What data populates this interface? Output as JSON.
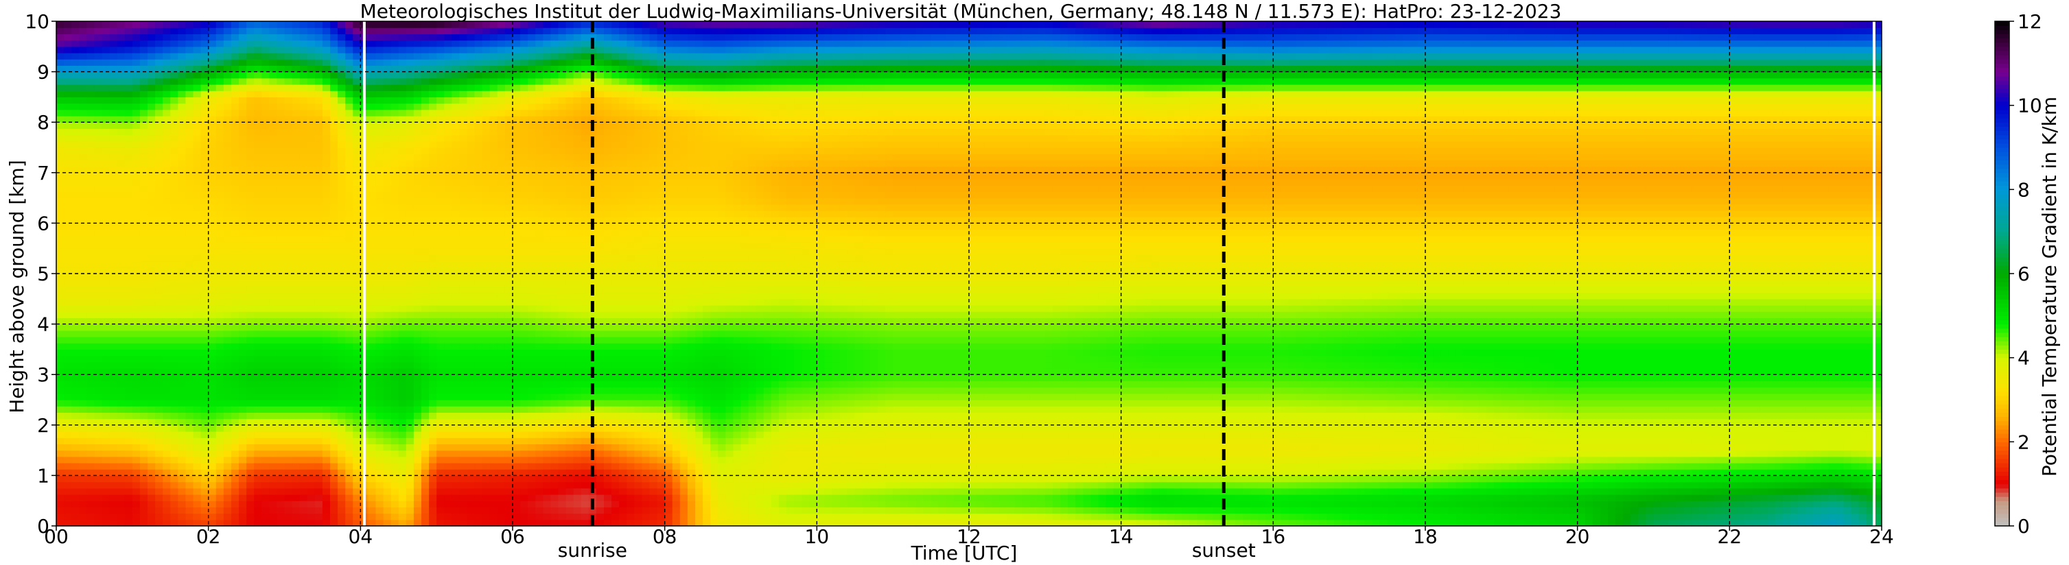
{
  "chart_data": {
    "type": "heatmap",
    "title": "Meteorologisches Institut der Ludwig-Maximilians-Universität (München, Germany; 48.148 N / 11.573 E):    HatPro: 23-12-2023",
    "xlabel": "Time [UTC]",
    "ylabel": "Height above ground [km]",
    "colorbar_label": "Potential Temperature Gradient in K/km",
    "xlim": [
      0,
      24
    ],
    "ylim": [
      0,
      10
    ],
    "clim": [
      0,
      12
    ],
    "x_ticks": [
      0,
      2,
      4,
      6,
      8,
      10,
      12,
      14,
      16,
      18,
      20,
      22,
      24
    ],
    "x_tick_labels": [
      "00",
      "02",
      "04",
      "06",
      "08",
      "10",
      "12",
      "14",
      "16",
      "18",
      "20",
      "22",
      "24"
    ],
    "y_ticks": [
      0,
      1,
      2,
      3,
      4,
      5,
      6,
      7,
      8,
      9,
      10
    ],
    "y_tick_labels": [
      "0",
      "1",
      "2",
      "3",
      "4",
      "5",
      "6",
      "7",
      "8",
      "9",
      "10"
    ],
    "colorbar_ticks": [
      0,
      2,
      4,
      6,
      8,
      10,
      12
    ],
    "colorbar_tick_labels": [
      "0",
      "2",
      "4",
      "6",
      "8",
      "10",
      "12"
    ],
    "grid": true,
    "annotations": [
      {
        "text": "sunrise",
        "x": 7.05
      },
      {
        "text": "sunset",
        "x": 15.35
      }
    ],
    "data_gaps": [
      4.05,
      23.9
    ],
    "colormap": [
      {
        "v": 0.0,
        "c": "#c0c0c0"
      },
      {
        "v": 0.6,
        "c": "#c89a82"
      },
      {
        "v": 1.0,
        "c": "#e60000"
      },
      {
        "v": 2.0,
        "c": "#ff6a00"
      },
      {
        "v": 2.6,
        "c": "#ffb400"
      },
      {
        "v": 3.2,
        "c": "#ffe000"
      },
      {
        "v": 4.0,
        "c": "#d6f500"
      },
      {
        "v": 4.8,
        "c": "#00ee00"
      },
      {
        "v": 6.0,
        "c": "#00aa00"
      },
      {
        "v": 7.0,
        "c": "#00a890"
      },
      {
        "v": 8.0,
        "c": "#0098d8"
      },
      {
        "v": 9.0,
        "c": "#0050e0"
      },
      {
        "v": 10.0,
        "c": "#0000cc"
      },
      {
        "v": 10.8,
        "c": "#780090"
      },
      {
        "v": 11.5,
        "c": "#3a003a"
      },
      {
        "v": 12.0,
        "c": "#000000"
      }
    ],
    "profiles": [
      {
        "t": 0.0,
        "v": [
          1.2,
          1.1,
          1.5,
          2.6,
          3.6,
          4.8,
          5.0,
          4.8,
          4.2,
          3.6,
          3.4,
          3.3,
          3.2,
          3.2,
          3.3,
          3.5,
          4.2,
          5.5,
          7.8,
          10.5,
          11.6
        ]
      },
      {
        "t": 1.0,
        "v": [
          1.1,
          1.0,
          1.6,
          2.8,
          3.8,
          5.0,
          5.1,
          4.8,
          4.2,
          3.6,
          3.4,
          3.3,
          3.2,
          3.2,
          3.3,
          3.6,
          4.3,
          5.6,
          7.8,
          9.8,
          11.0
        ]
      },
      {
        "t": 2.0,
        "v": [
          1.6,
          2.2,
          3.0,
          3.8,
          4.4,
          5.0,
          5.0,
          4.8,
          4.2,
          3.7,
          3.5,
          3.3,
          3.2,
          3.1,
          3.0,
          3.0,
          3.1,
          3.6,
          6.0,
          8.5,
          10.2
        ]
      },
      {
        "t": 2.6,
        "v": [
          1.0,
          1.0,
          1.5,
          2.6,
          3.8,
          5.1,
          5.3,
          5.0,
          4.3,
          3.8,
          3.5,
          3.3,
          3.1,
          3.0,
          2.9,
          2.8,
          2.7,
          2.8,
          4.8,
          7.0,
          8.8
        ]
      },
      {
        "t": 3.5,
        "v": [
          1.0,
          0.9,
          1.4,
          2.6,
          3.8,
          5.1,
          5.3,
          5.0,
          4.3,
          3.8,
          3.5,
          3.3,
          3.1,
          3.0,
          2.9,
          2.8,
          2.8,
          3.2,
          5.6,
          8.0,
          9.6
        ]
      },
      {
        "t": 4.0,
        "v": [
          1.8,
          2.2,
          3.0,
          3.8,
          4.4,
          5.0,
          5.1,
          4.8,
          4.2,
          3.8,
          3.5,
          3.3,
          3.2,
          3.2,
          3.3,
          3.5,
          4.0,
          5.4,
          7.6,
          9.8,
          11.8
        ]
      },
      {
        "t": 4.6,
        "v": [
          2.5,
          3.2,
          3.6,
          4.2,
          4.8,
          5.4,
          5.4,
          5.0,
          4.4,
          3.8,
          3.5,
          3.3,
          3.2,
          3.1,
          3.1,
          3.3,
          3.8,
          5.2,
          7.2,
          9.4,
          11.9
        ]
      },
      {
        "t": 5.0,
        "v": [
          1.2,
          1.0,
          1.4,
          2.4,
          3.6,
          4.8,
          5.0,
          4.8,
          4.4,
          3.9,
          3.6,
          3.3,
          3.2,
          3.1,
          3.0,
          3.1,
          3.4,
          4.6,
          6.8,
          9.2,
          11.9
        ]
      },
      {
        "t": 6.0,
        "v": [
          1.0,
          1.0,
          1.3,
          2.4,
          3.6,
          4.8,
          5.0,
          4.8,
          4.4,
          3.9,
          3.6,
          3.3,
          3.2,
          3.0,
          2.9,
          2.8,
          2.8,
          3.6,
          5.8,
          8.4,
          11.0
        ]
      },
      {
        "t": 7.0,
        "v": [
          1.0,
          0.8,
          1.1,
          2.0,
          3.2,
          4.6,
          5.0,
          4.8,
          4.2,
          3.8,
          3.6,
          3.3,
          3.1,
          2.9,
          2.8,
          2.6,
          2.5,
          2.8,
          4.5,
          7.0,
          9.6
        ]
      },
      {
        "t": 8.0,
        "v": [
          1.4,
          1.2,
          1.8,
          2.8,
          3.6,
          4.6,
          5.0,
          4.8,
          4.2,
          3.8,
          3.6,
          3.4,
          3.2,
          3.0,
          2.9,
          2.8,
          2.8,
          3.4,
          6.0,
          8.6,
          10.6
        ]
      },
      {
        "t": 8.7,
        "v": [
          3.4,
          3.6,
          3.8,
          4.2,
          4.6,
          5.0,
          5.2,
          5.0,
          4.4,
          3.9,
          3.6,
          3.4,
          3.2,
          3.0,
          2.9,
          2.9,
          3.0,
          3.6,
          6.2,
          8.8,
          10.8
        ]
      },
      {
        "t": 9.6,
        "v": [
          3.8,
          4.2,
          3.6,
          3.6,
          4.0,
          4.4,
          4.8,
          4.8,
          4.4,
          4.0,
          3.6,
          3.4,
          3.1,
          2.7,
          2.6,
          2.9,
          3.2,
          3.6,
          5.8,
          8.4,
          10.8
        ]
      },
      {
        "t": 11.0,
        "v": [
          3.6,
          4.4,
          3.8,
          3.5,
          3.8,
          4.2,
          4.6,
          4.6,
          4.3,
          3.9,
          3.5,
          3.3,
          3.0,
          2.6,
          2.5,
          2.8,
          3.1,
          3.6,
          5.6,
          8.2,
          10.4
        ]
      },
      {
        "t": 13.0,
        "v": [
          3.7,
          4.6,
          3.8,
          3.5,
          3.8,
          4.2,
          4.6,
          4.6,
          4.3,
          3.9,
          3.5,
          3.3,
          3.0,
          2.6,
          2.5,
          2.8,
          3.1,
          3.6,
          5.6,
          8.0,
          10.2
        ]
      },
      {
        "t": 14.5,
        "v": [
          3.9,
          5.2,
          4.0,
          3.5,
          3.8,
          4.2,
          4.6,
          4.7,
          4.4,
          4.0,
          3.6,
          3.3,
          3.0,
          2.6,
          2.5,
          2.8,
          3.2,
          3.8,
          5.8,
          8.4,
          11.0
        ]
      },
      {
        "t": 16.0,
        "v": [
          4.4,
          5.0,
          4.0,
          3.5,
          3.8,
          4.2,
          4.6,
          4.7,
          4.4,
          4.0,
          3.6,
          3.3,
          3.0,
          2.6,
          2.5,
          2.7,
          3.0,
          3.6,
          5.8,
          8.6,
          10.4
        ]
      },
      {
        "t": 18.0,
        "v": [
          4.8,
          5.2,
          4.2,
          3.6,
          3.8,
          4.3,
          4.7,
          4.8,
          4.5,
          4.1,
          3.6,
          3.3,
          3.0,
          2.6,
          2.5,
          2.7,
          3.0,
          3.6,
          5.8,
          8.4,
          10.2
        ]
      },
      {
        "t": 20.0,
        "v": [
          5.2,
          5.6,
          4.6,
          3.8,
          4.0,
          4.4,
          4.8,
          4.8,
          4.5,
          4.1,
          3.6,
          3.3,
          3.0,
          2.6,
          2.5,
          2.7,
          3.0,
          3.6,
          5.8,
          8.4,
          10.4
        ]
      },
      {
        "t": 21.0,
        "v": [
          6.6,
          6.0,
          4.8,
          3.8,
          4.0,
          4.4,
          4.8,
          4.8,
          4.5,
          4.1,
          3.6,
          3.3,
          3.0,
          2.6,
          2.5,
          2.7,
          3.0,
          3.6,
          5.8,
          8.4,
          10.4
        ]
      },
      {
        "t": 22.5,
        "v": [
          7.0,
          6.4,
          5.0,
          3.9,
          4.0,
          4.4,
          4.8,
          4.8,
          4.5,
          4.1,
          3.6,
          3.3,
          3.0,
          2.6,
          2.5,
          2.7,
          3.0,
          3.6,
          5.8,
          8.4,
          10.6
        ]
      },
      {
        "t": 23.4,
        "v": [
          7.8,
          6.8,
          5.2,
          4.0,
          4.0,
          4.4,
          4.8,
          4.8,
          4.5,
          4.1,
          3.6,
          3.3,
          3.0,
          2.6,
          2.5,
          2.7,
          3.0,
          3.6,
          5.8,
          8.4,
          10.6
        ]
      },
      {
        "t": 24.0,
        "v": [
          6.6,
          6.2,
          5.0,
          3.9,
          4.0,
          4.4,
          4.8,
          4.8,
          4.5,
          4.1,
          3.6,
          3.3,
          3.0,
          2.6,
          2.5,
          2.7,
          3.0,
          3.6,
          5.8,
          8.4,
          10.4
        ]
      }
    ]
  }
}
